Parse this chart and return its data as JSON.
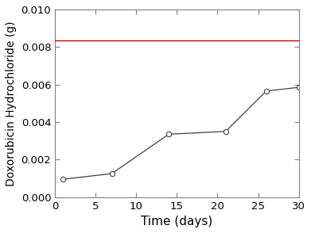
{
  "x": [
    1,
    7,
    14,
    21,
    26,
    30
  ],
  "y": [
    0.00095,
    0.00125,
    0.00335,
    0.0035,
    0.00565,
    0.00585
  ],
  "hline_y": 0.00835,
  "hline_color": "#cc0000",
  "line_color": "#404040",
  "marker": "o",
  "marker_facecolor": "white",
  "marker_edgecolor": "#404040",
  "marker_size": 4.5,
  "marker_linewidth": 0.8,
  "xlabel": "Time (days)",
  "ylabel": "Doxorubicin Hydrochloride (g)",
  "xlim": [
    0,
    30
  ],
  "ylim": [
    0,
    0.01
  ],
  "xticks": [
    0,
    5,
    10,
    15,
    20,
    25,
    30
  ],
  "yticks": [
    0.0,
    0.002,
    0.004,
    0.006,
    0.008,
    0.01
  ],
  "xlabel_fontsize": 11,
  "ylabel_fontsize": 10,
  "tick_fontsize": 9.5,
  "spine_color": "#808080",
  "linewidth": 0.9
}
